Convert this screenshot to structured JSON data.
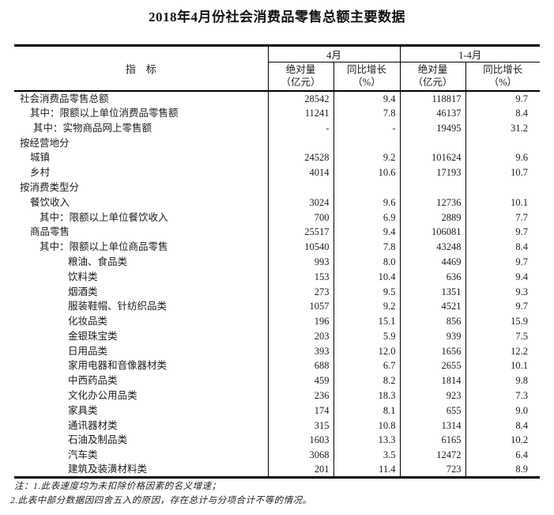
{
  "title": "2018年4月份社会消费品零售总额主要数据",
  "colors": {
    "text": "#1c1c1c",
    "border": "#000000",
    "background": "#ffffff"
  },
  "table": {
    "header": {
      "indicator": "指　标",
      "groups": [
        {
          "label": "4月",
          "sub": [
            {
              "l1": "绝对量",
              "l2": "（亿元）"
            },
            {
              "l1": "同比增长",
              "l2": "（%）"
            }
          ]
        },
        {
          "label": "1-4月",
          "sub": [
            {
              "l1": "绝对量",
              "l2": "（亿元）"
            },
            {
              "l1": "同比增长",
              "l2": "（%）"
            }
          ]
        }
      ]
    },
    "rows": [
      {
        "label": "社会消费品零售总额",
        "level": 0,
        "apr_abs": "28542",
        "apr_pct": "9.4",
        "cum_abs": "118817",
        "cum_pct": "9.7"
      },
      {
        "label": "其中：限额以上单位消费品零售额",
        "level": 1,
        "apr_abs": "11241",
        "apr_pct": "7.8",
        "cum_abs": "46137",
        "cum_pct": "8.4"
      },
      {
        "label": "其中：实物商品网上零售额",
        "level": 1.5,
        "apr_abs": "-",
        "apr_pct": "-",
        "cum_abs": "19495",
        "cum_pct": "31.2"
      },
      {
        "label": "按经营地分",
        "level": 0,
        "apr_abs": "",
        "apr_pct": "",
        "cum_abs": "",
        "cum_pct": ""
      },
      {
        "label": "城镇",
        "level": 1,
        "apr_abs": "24528",
        "apr_pct": "9.2",
        "cum_abs": "101624",
        "cum_pct": "9.6"
      },
      {
        "label": "乡村",
        "level": 1,
        "apr_abs": "4014",
        "apr_pct": "10.6",
        "cum_abs": "17193",
        "cum_pct": "10.7"
      },
      {
        "label": "按消费类型分",
        "level": 0,
        "apr_abs": "",
        "apr_pct": "",
        "cum_abs": "",
        "cum_pct": ""
      },
      {
        "label": "餐饮收入",
        "level": 1,
        "apr_abs": "3024",
        "apr_pct": "9.6",
        "cum_abs": "12736",
        "cum_pct": "10.1"
      },
      {
        "label": "其中：限额以上单位餐饮收入",
        "level": 2,
        "apr_abs": "700",
        "apr_pct": "6.9",
        "cum_abs": "2889",
        "cum_pct": "7.7"
      },
      {
        "label": "商品零售",
        "level": 1,
        "apr_abs": "25517",
        "apr_pct": "9.4",
        "cum_abs": "106081",
        "cum_pct": "9.7"
      },
      {
        "label": "其中：限额以上单位商品零售",
        "level": 2,
        "apr_abs": "10540",
        "apr_pct": "7.8",
        "cum_abs": "43248",
        "cum_pct": "8.4"
      },
      {
        "label": "粮油、食品类",
        "level": 3,
        "apr_abs": "993",
        "apr_pct": "8.0",
        "cum_abs": "4469",
        "cum_pct": "9.7"
      },
      {
        "label": "饮料类",
        "level": 3,
        "apr_abs": "153",
        "apr_pct": "10.4",
        "cum_abs": "636",
        "cum_pct": "9.4"
      },
      {
        "label": "烟酒类",
        "level": 3,
        "apr_abs": "273",
        "apr_pct": "9.5",
        "cum_abs": "1351",
        "cum_pct": "9.3"
      },
      {
        "label": "服装鞋帽、针纺织品类",
        "level": 3,
        "apr_abs": "1057",
        "apr_pct": "9.2",
        "cum_abs": "4521",
        "cum_pct": "9.7"
      },
      {
        "label": "化妆品类",
        "level": 3,
        "apr_abs": "196",
        "apr_pct": "15.1",
        "cum_abs": "856",
        "cum_pct": "15.9"
      },
      {
        "label": "金银珠宝类",
        "level": 3,
        "apr_abs": "203",
        "apr_pct": "5.9",
        "cum_abs": "939",
        "cum_pct": "7.5"
      },
      {
        "label": "日用品类",
        "level": 3,
        "apr_abs": "393",
        "apr_pct": "12.0",
        "cum_abs": "1656",
        "cum_pct": "12.2"
      },
      {
        "label": "家用电器和音像器材类",
        "level": 3,
        "apr_abs": "688",
        "apr_pct": "6.7",
        "cum_abs": "2655",
        "cum_pct": "10.1"
      },
      {
        "label": "中西药品类",
        "level": 3,
        "apr_abs": "459",
        "apr_pct": "8.2",
        "cum_abs": "1814",
        "cum_pct": "9.8"
      },
      {
        "label": "文化办公用品类",
        "level": 3,
        "apr_abs": "236",
        "apr_pct": "18.3",
        "cum_abs": "923",
        "cum_pct": "7.3"
      },
      {
        "label": "家具类",
        "level": 3,
        "apr_abs": "174",
        "apr_pct": "8.1",
        "cum_abs": "655",
        "cum_pct": "9.0"
      },
      {
        "label": "通讯器材类",
        "level": 3,
        "apr_abs": "315",
        "apr_pct": "10.8",
        "cum_abs": "1314",
        "cum_pct": "8.4"
      },
      {
        "label": "石油及制品类",
        "level": 3,
        "apr_abs": "1603",
        "apr_pct": "13.3",
        "cum_abs": "6165",
        "cum_pct": "10.2"
      },
      {
        "label": "汽车类",
        "level": 3,
        "apr_abs": "3068",
        "apr_pct": "3.5",
        "cum_abs": "12472",
        "cum_pct": "6.4"
      },
      {
        "label": "建筑及装潢材料类",
        "level": 3,
        "apr_abs": "201",
        "apr_pct": "11.4",
        "cum_abs": "723",
        "cum_pct": "8.9"
      }
    ]
  },
  "notes": [
    "注：1.此表速度均为未扣除价格因素的名义增速；",
    "2.此表中部分数据因四舍五入的原因，存在总计与分项合计不等的情况。"
  ]
}
